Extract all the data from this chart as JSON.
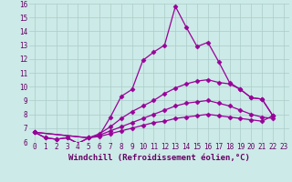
{
  "xlabel": "Windchill (Refroidissement éolien,°C)",
  "xlim": [
    -0.5,
    23.5
  ],
  "ylim": [
    6,
    16
  ],
  "xticks": [
    0,
    1,
    2,
    3,
    4,
    5,
    6,
    7,
    8,
    9,
    10,
    11,
    12,
    13,
    14,
    15,
    16,
    17,
    18,
    19,
    20,
    21,
    22,
    23
  ],
  "yticks": [
    6,
    7,
    8,
    9,
    10,
    11,
    12,
    13,
    14,
    15,
    16
  ],
  "bg_color": "#cceae7",
  "line_color": "#990099",
  "grid_color": "#aaccc8",
  "lines": [
    {
      "x": [
        0,
        1,
        2,
        3,
        4,
        5,
        6,
        7,
        8,
        9,
        10,
        11,
        12,
        13,
        14,
        15,
        16,
        17,
        18,
        19,
        20,
        21,
        22
      ],
      "y": [
        6.7,
        6.3,
        6.2,
        6.3,
        5.9,
        6.3,
        6.5,
        7.8,
        9.3,
        9.8,
        11.9,
        12.5,
        13.0,
        15.8,
        14.3,
        12.9,
        13.2,
        11.8,
        10.3,
        9.8,
        9.2,
        9.1,
        7.9
      ]
    },
    {
      "x": [
        0,
        1,
        2,
        3,
        4,
        5,
        6,
        7,
        8,
        9,
        10,
        11,
        12,
        13,
        14,
        15,
        16,
        17,
        18,
        19,
        20,
        21,
        22
      ],
      "y": [
        6.7,
        6.3,
        6.2,
        6.3,
        5.9,
        6.3,
        6.6,
        7.1,
        7.7,
        8.2,
        8.6,
        9.0,
        9.5,
        9.9,
        10.2,
        10.4,
        10.5,
        10.3,
        10.2,
        9.8,
        9.2,
        9.1,
        7.9
      ]
    },
    {
      "x": [
        0,
        5,
        6,
        7,
        8,
        9,
        10,
        11,
        12,
        13,
        14,
        15,
        16,
        17,
        18,
        19,
        20,
        21,
        22
      ],
      "y": [
        6.7,
        6.3,
        6.5,
        6.8,
        7.1,
        7.4,
        7.7,
        8.0,
        8.3,
        8.6,
        8.8,
        8.9,
        9.0,
        8.8,
        8.6,
        8.3,
        8.0,
        7.8,
        7.7
      ]
    },
    {
      "x": [
        0,
        5,
        6,
        7,
        8,
        9,
        10,
        11,
        12,
        13,
        14,
        15,
        16,
        17,
        18,
        19,
        20,
        21,
        22
      ],
      "y": [
        6.7,
        6.3,
        6.4,
        6.6,
        6.8,
        7.0,
        7.2,
        7.4,
        7.5,
        7.7,
        7.8,
        7.9,
        8.0,
        7.9,
        7.8,
        7.7,
        7.6,
        7.5,
        7.9
      ]
    }
  ],
  "marker": "D",
  "markersize": 2.5,
  "linewidth": 0.9,
  "tick_fontsize": 5.5,
  "label_fontsize": 6.5
}
